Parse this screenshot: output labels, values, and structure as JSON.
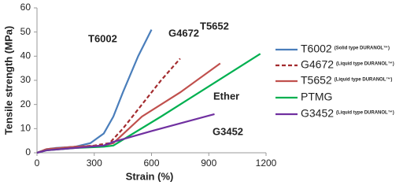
{
  "chart_data": {
    "type": "line",
    "xlabel": "Strain (%)",
    "ylabel": "Tensile strength (MPa)",
    "xlim": [
      0,
      1200
    ],
    "xticks": [
      0,
      300,
      600,
      900,
      1200
    ],
    "ylim": [
      0,
      60
    ],
    "yticks": [
      0,
      10,
      20,
      30,
      40,
      50,
      60
    ],
    "grid": false,
    "legend": "right",
    "series": [
      {
        "name": "T6002",
        "description": "(Solid type DURANOL™)",
        "color": "#4a7ebb",
        "dash": false,
        "x": [
          0,
          50,
          100,
          200,
          280,
          350,
          400,
          450,
          530,
          600
        ],
        "values": [
          0,
          1.5,
          2,
          2.5,
          4,
          8,
          15,
          25,
          40,
          51
        ]
      },
      {
        "name": "G4672",
        "description": "(Liquid type DURANOL™)",
        "color": "#a32b2e",
        "dash": true,
        "x": [
          0,
          50,
          200,
          300,
          380,
          450,
          550,
          650,
          750
        ],
        "values": [
          0,
          1.5,
          2.5,
          3,
          4,
          10,
          20,
          30,
          39
        ]
      },
      {
        "name": "T5652",
        "description": "(Liquid type DURANOL™)",
        "color": "#c0504d",
        "dash": false,
        "x": [
          0,
          50,
          200,
          350,
          400,
          550,
          750,
          960
        ],
        "values": [
          0,
          1.5,
          2.5,
          3,
          4,
          15,
          25,
          37
        ]
      },
      {
        "name": "PTMG",
        "color": "#00b050",
        "dash": false,
        "x": [
          0,
          50,
          200,
          350,
          400,
          650,
          1170
        ],
        "values": [
          0,
          1,
          2,
          2.5,
          3,
          15,
          41
        ]
      },
      {
        "name": "G3452",
        "description": "(Liquid type DURANOL™)",
        "color": "#7030a0",
        "dash": false,
        "x": [
          0,
          50,
          200,
          350,
          400,
          600,
          930
        ],
        "values": [
          0,
          1,
          2,
          3,
          4.5,
          9,
          16
        ]
      }
    ],
    "annotations": [
      {
        "text": "T6002",
        "color": "#3a78c8"
      },
      {
        "text": "G4672",
        "color": "#e02020"
      },
      {
        "text": "T5652",
        "color": "#e02020"
      },
      {
        "text": "Ether",
        "color": "#00b050"
      },
      {
        "text": "G3452",
        "color": "#7030a0"
      }
    ]
  }
}
